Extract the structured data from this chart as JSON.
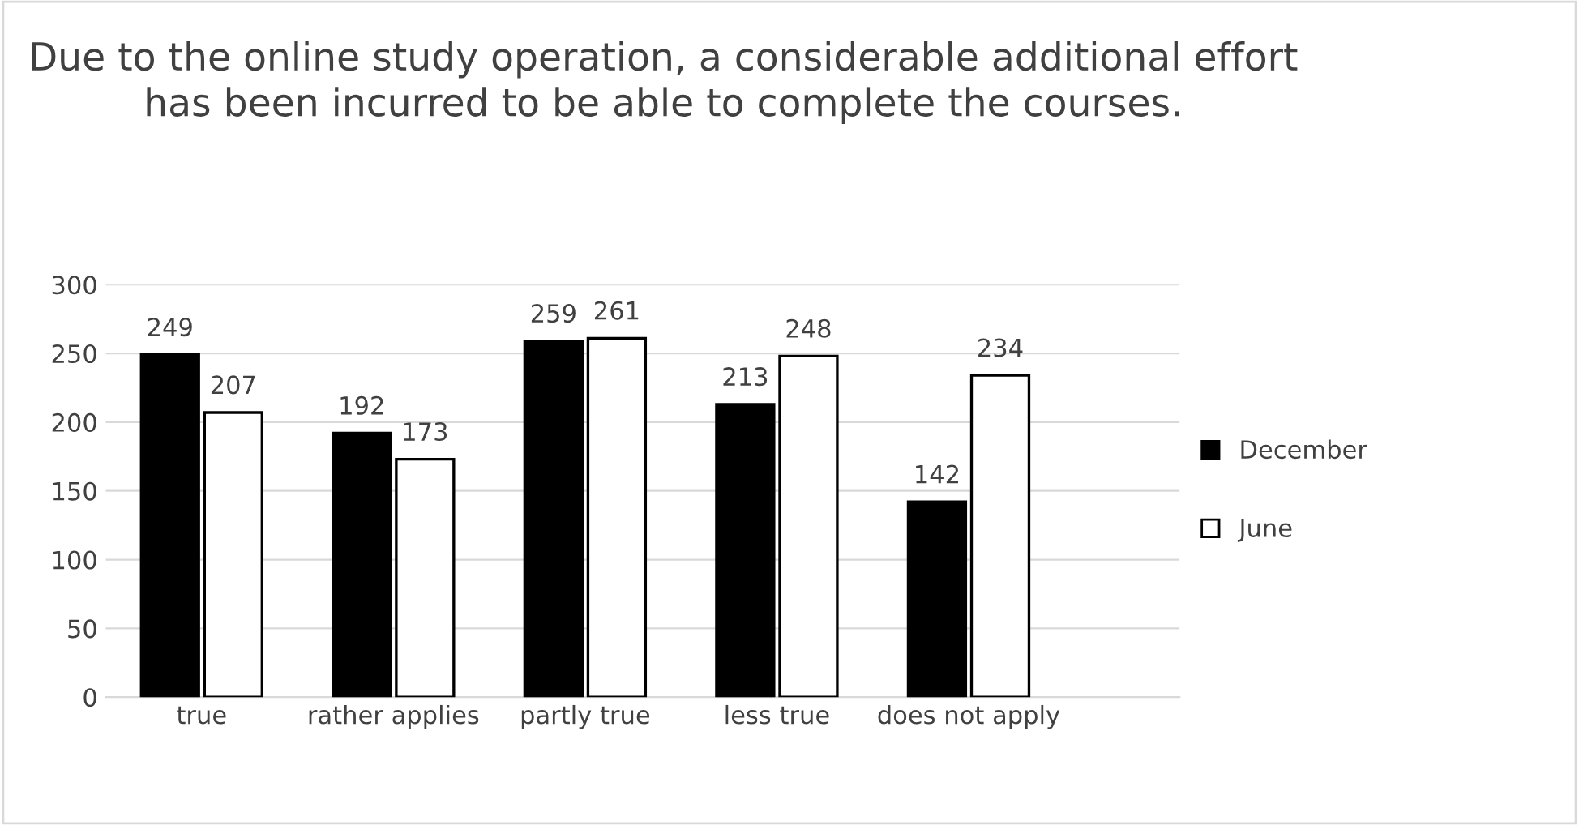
{
  "chart_data": {
    "type": "bar",
    "title": "Due to the online study operation, a considerable additional effort has been incurred to be able to complete the courses.",
    "categories": [
      "true",
      "rather applies",
      "partly true",
      "less true",
      "does not apply"
    ],
    "series": [
      {
        "name": "December",
        "color": "#000000",
        "values": [
          249,
          192,
          259,
          213,
          142
        ]
      },
      {
        "name": "June",
        "color": "#ffffff",
        "values": [
          207,
          173,
          261,
          248,
          234
        ]
      }
    ],
    "ylim": [
      0,
      300
    ],
    "yticks": [
      0,
      50,
      100,
      150,
      200,
      250,
      300
    ],
    "grid": "y",
    "legend": "right",
    "data_labels": true
  }
}
